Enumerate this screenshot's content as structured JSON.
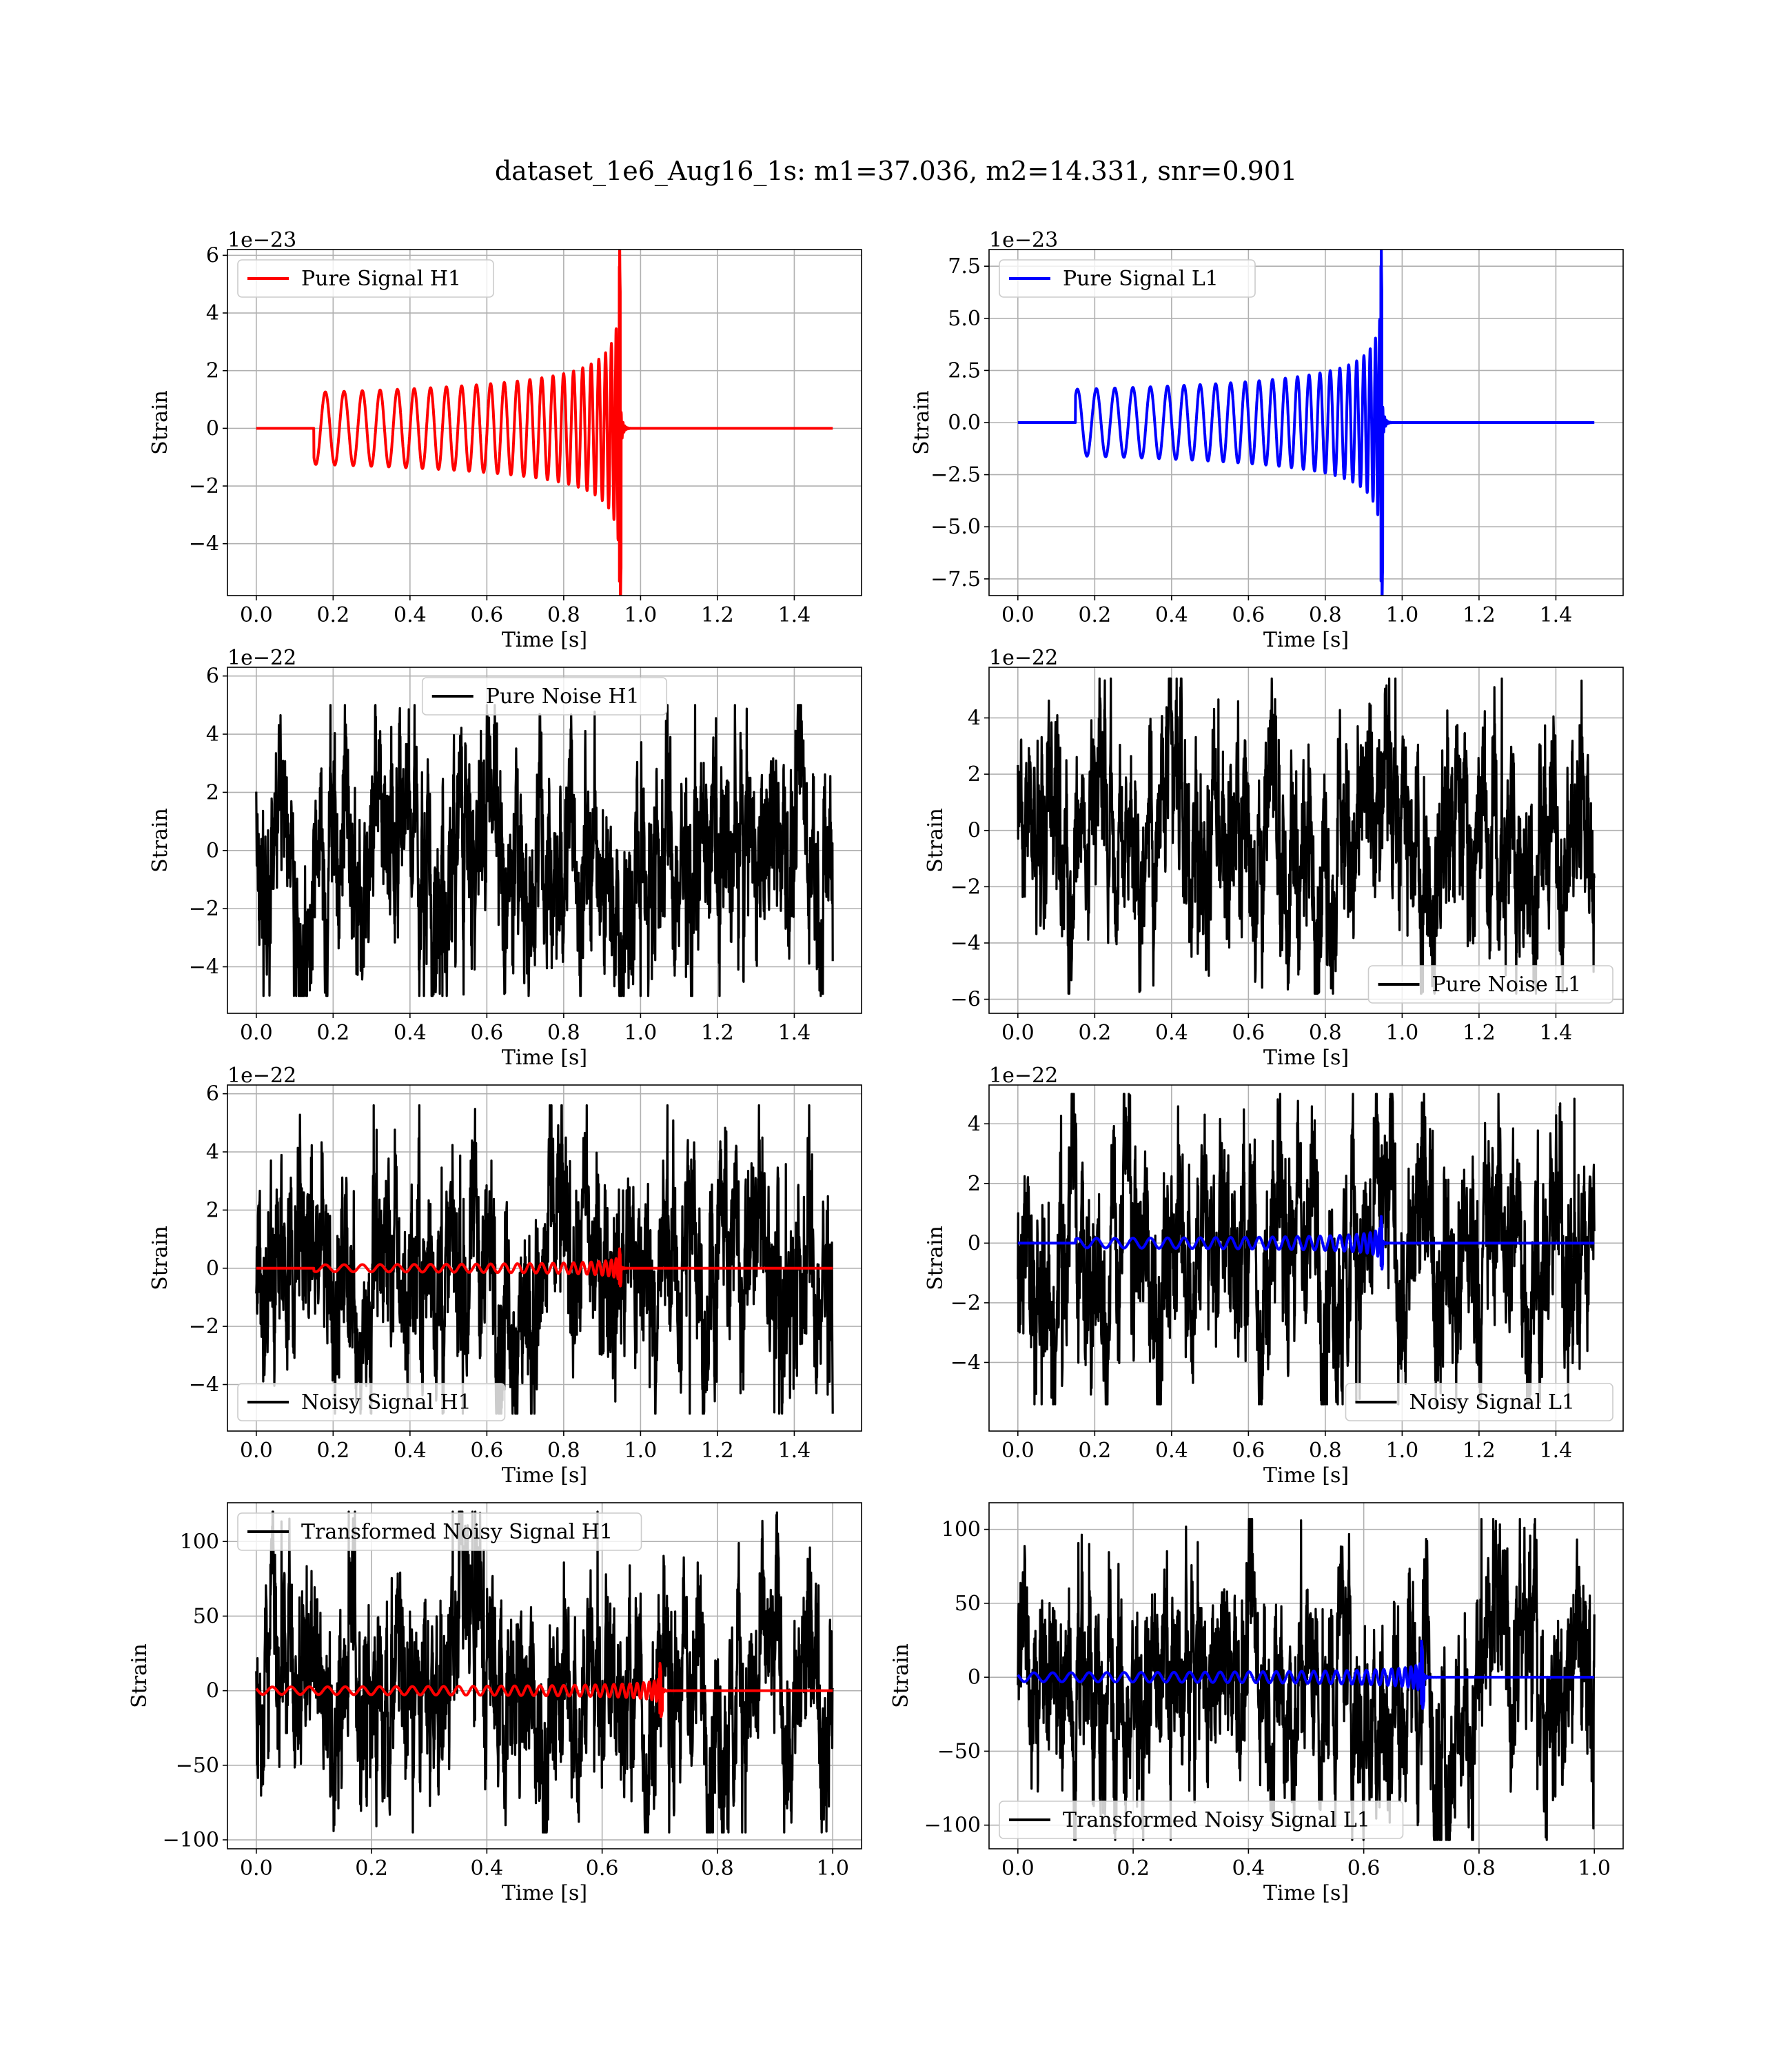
{
  "figure": {
    "suptitle": "dataset_1e6_Aug16_1s: m1=37.036, m2=14.331, snr=0.901"
  },
  "colors": {
    "signal_h1": "#ff0000",
    "signal_l1": "#0000ff",
    "noise": "#000000",
    "grid": "#b0b0b0"
  },
  "chart_data": [
    {
      "id": "pure-signal-h1",
      "type": "line",
      "kind": "signal",
      "xlabel": "Time [s]",
      "ylabel": "Strain",
      "offset_text": "1e−23",
      "xlim": [
        -0.075,
        1.575
      ],
      "ylim": [
        -5.8,
        6.2
      ],
      "xticks": [
        0.0,
        0.2,
        0.4,
        0.6,
        0.8,
        1.0,
        1.2,
        1.4
      ],
      "xticklabels": [
        "0.0",
        "0.2",
        "0.4",
        "0.6",
        "0.8",
        "1.0",
        "1.2",
        "1.4"
      ],
      "yticks": [
        -4,
        -2,
        0,
        2,
        4,
        6
      ],
      "yticklabels": [
        "−4",
        "−2",
        "0",
        "2",
        "4",
        "6"
      ],
      "grid": true,
      "legend_loc": "upper left",
      "series": [
        {
          "name": "Pure Signal H1",
          "color": "#ff0000",
          "role": "chirp",
          "duration": 1.5,
          "t_start": 0.15,
          "t_merge": 0.945,
          "f0": 20,
          "a0": 1.25,
          "a_peak": 5.6,
          "a_neg_peak": -5.3,
          "seed": 3
        }
      ]
    },
    {
      "id": "pure-signal-l1",
      "type": "line",
      "kind": "signal",
      "xlabel": "Time [s]",
      "ylabel": "Strain",
      "offset_text": "1e−23",
      "xlim": [
        -0.075,
        1.575
      ],
      "ylim": [
        -8.3,
        8.3
      ],
      "xticks": [
        0.0,
        0.2,
        0.4,
        0.6,
        0.8,
        1.0,
        1.2,
        1.4
      ],
      "xticklabels": [
        "0.0",
        "0.2",
        "0.4",
        "0.6",
        "0.8",
        "1.0",
        "1.2",
        "1.4"
      ],
      "yticks": [
        -7.5,
        -5.0,
        -2.5,
        0.0,
        2.5,
        5.0,
        7.5
      ],
      "yticklabels": [
        "−7.5",
        "−5.0",
        "−2.5",
        "0.0",
        "2.5",
        "5.0",
        "7.5"
      ],
      "grid": true,
      "legend_loc": "upper left",
      "series": [
        {
          "name": "Pure Signal L1",
          "color": "#0000ff",
          "role": "chirp",
          "duration": 1.5,
          "t_start": 0.15,
          "t_merge": 0.945,
          "f0": 20,
          "a0": -1.6,
          "a_peak": 7.5,
          "a_neg_peak": -7.6,
          "seed": 5
        }
      ]
    },
    {
      "id": "pure-noise-h1",
      "type": "line",
      "kind": "noise",
      "xlabel": "Time [s]",
      "ylabel": "Strain",
      "offset_text": "1e−22",
      "xlim": [
        -0.075,
        1.575
      ],
      "ylim": [
        -5.6,
        6.3
      ],
      "xticks": [
        0.0,
        0.2,
        0.4,
        0.6,
        0.8,
        1.0,
        1.2,
        1.4
      ],
      "xticklabels": [
        "0.0",
        "0.2",
        "0.4",
        "0.6",
        "0.8",
        "1.0",
        "1.2",
        "1.4"
      ],
      "yticks": [
        -4,
        -2,
        0,
        2,
        4,
        6
      ],
      "yticklabels": [
        "−4",
        "−2",
        "0",
        "2",
        "4",
        "6"
      ],
      "grid": true,
      "legend_loc": "upper center",
      "series": [
        {
          "name": "Pure Noise H1",
          "color": "#000000",
          "role": "noise",
          "duration": 1.5,
          "amplitude": 1.6,
          "min": -5.0,
          "max": 5.0,
          "seed": 11
        }
      ]
    },
    {
      "id": "pure-noise-l1",
      "type": "line",
      "kind": "noise",
      "xlabel": "Time [s]",
      "ylabel": "Strain",
      "offset_text": "1e−22",
      "xlim": [
        -0.075,
        1.575
      ],
      "ylim": [
        -6.5,
        5.8
      ],
      "xticks": [
        0.0,
        0.2,
        0.4,
        0.6,
        0.8,
        1.0,
        1.2,
        1.4
      ],
      "xticklabels": [
        "0.0",
        "0.2",
        "0.4",
        "0.6",
        "0.8",
        "1.0",
        "1.2",
        "1.4"
      ],
      "yticks": [
        -6,
        -4,
        -2,
        0,
        2,
        4
      ],
      "yticklabels": [
        "−6",
        "−4",
        "−2",
        "0",
        "2",
        "4"
      ],
      "grid": true,
      "legend_loc": "lower right",
      "series": [
        {
          "name": "Pure Noise L1",
          "color": "#000000",
          "role": "noise",
          "duration": 1.5,
          "amplitude": 1.6,
          "min": -5.8,
          "max": 5.4,
          "seed": 17
        }
      ]
    },
    {
      "id": "noisy-signal-h1",
      "type": "line",
      "kind": "noisy",
      "xlabel": "Time [s]",
      "ylabel": "Strain",
      "offset_text": "1e−22",
      "xlim": [
        -0.075,
        1.575
      ],
      "ylim": [
        -5.6,
        6.3
      ],
      "xticks": [
        0.0,
        0.2,
        0.4,
        0.6,
        0.8,
        1.0,
        1.2,
        1.4
      ],
      "xticklabels": [
        "0.0",
        "0.2",
        "0.4",
        "0.6",
        "0.8",
        "1.0",
        "1.2",
        "1.4"
      ],
      "yticks": [
        -4,
        -2,
        0,
        2,
        4,
        6
      ],
      "yticklabels": [
        "−4",
        "−2",
        "0",
        "2",
        "4",
        "6"
      ],
      "grid": true,
      "legend_loc": "lower left",
      "series": [
        {
          "name": "Noisy Signal H1",
          "color": "#000000",
          "role": "noise",
          "duration": 1.5,
          "amplitude": 1.6,
          "min": -5.0,
          "max": 5.6,
          "seed": 23
        },
        {
          "color": "#ff0000",
          "role": "chirp",
          "duration": 1.5,
          "t_start": 0.15,
          "t_merge": 0.945,
          "f0": 20,
          "a0": 0.12,
          "a_peak": 0.56,
          "a_neg_peak": -0.53,
          "seed": 3
        }
      ]
    },
    {
      "id": "noisy-signal-l1",
      "type": "line",
      "kind": "noisy",
      "xlabel": "Time [s]",
      "ylabel": "Strain",
      "offset_text": "1e−22",
      "xlim": [
        -0.075,
        1.575
      ],
      "ylim": [
        -6.3,
        5.3
      ],
      "xticks": [
        0.0,
        0.2,
        0.4,
        0.6,
        0.8,
        1.0,
        1.2,
        1.4
      ],
      "xticklabels": [
        "0.0",
        "0.2",
        "0.4",
        "0.6",
        "0.8",
        "1.0",
        "1.2",
        "1.4"
      ],
      "yticks": [
        -4,
        -2,
        0,
        2,
        4
      ],
      "yticklabels": [
        "−4",
        "−2",
        "0",
        "2",
        "4"
      ],
      "grid": true,
      "legend_loc": "lower right",
      "series": [
        {
          "name": "Noisy Signal L1",
          "color": "#000000",
          "role": "noise",
          "duration": 1.5,
          "amplitude": 1.6,
          "min": -5.4,
          "max": 5.0,
          "seed": 29
        },
        {
          "color": "#0000ff",
          "role": "chirp",
          "duration": 1.5,
          "t_start": 0.15,
          "t_merge": 0.945,
          "f0": 20,
          "a0": -0.16,
          "a_peak": 0.75,
          "a_neg_peak": -0.76,
          "seed": 5
        }
      ]
    },
    {
      "id": "transformed-noisy-signal-h1",
      "type": "line",
      "kind": "transformed",
      "xlabel": "Time [s]",
      "ylabel": "Strain",
      "offset_text": "",
      "xlim": [
        -0.05,
        1.05
      ],
      "ylim": [
        -106,
        126
      ],
      "xticks": [
        0.0,
        0.2,
        0.4,
        0.6,
        0.8,
        1.0
      ],
      "xticklabels": [
        "0.0",
        "0.2",
        "0.4",
        "0.6",
        "0.8",
        "1.0"
      ],
      "yticks": [
        -100,
        -50,
        0,
        50,
        100
      ],
      "yticklabels": [
        "−100",
        "−50",
        "0",
        "50",
        "100"
      ],
      "grid": true,
      "legend_loc": "upper left",
      "series": [
        {
          "name": "Transformed Noisy Signal H1",
          "color": "#000000",
          "role": "noise",
          "duration": 1.0,
          "amplitude": 30,
          "min": -95,
          "max": 120,
          "seed": 31
        },
        {
          "color": "#ff0000",
          "role": "chirp",
          "duration": 1.0,
          "t_start": 0.0,
          "t_merge": 0.7,
          "f0": 30,
          "a0": 2.5,
          "a_peak": 15,
          "a_neg_peak": -15,
          "seed": 3
        }
      ]
    },
    {
      "id": "transformed-noisy-signal-l1",
      "type": "line",
      "kind": "transformed",
      "xlabel": "Time [s]",
      "ylabel": "Strain",
      "offset_text": "",
      "xlim": [
        -0.05,
        1.05
      ],
      "ylim": [
        -116,
        118
      ],
      "xticks": [
        0.0,
        0.2,
        0.4,
        0.6,
        0.8,
        1.0
      ],
      "xticklabels": [
        "0.0",
        "0.2",
        "0.4",
        "0.6",
        "0.8",
        "1.0"
      ],
      "yticks": [
        -100,
        -50,
        0,
        50,
        100
      ],
      "yticklabels": [
        "−100",
        "−50",
        "0",
        "50",
        "100"
      ],
      "grid": true,
      "legend_loc": "lower left",
      "series": [
        {
          "name": "Transformed Noisy Signal L1",
          "color": "#000000",
          "role": "noise",
          "duration": 1.0,
          "amplitude": 30,
          "min": -110,
          "max": 107,
          "seed": 37
        },
        {
          "color": "#0000ff",
          "role": "chirp",
          "duration": 1.0,
          "t_start": 0.0,
          "t_merge": 0.7,
          "f0": 30,
          "a0": 3,
          "a_peak": 20,
          "a_neg_peak": -18,
          "seed": 5
        }
      ]
    }
  ]
}
